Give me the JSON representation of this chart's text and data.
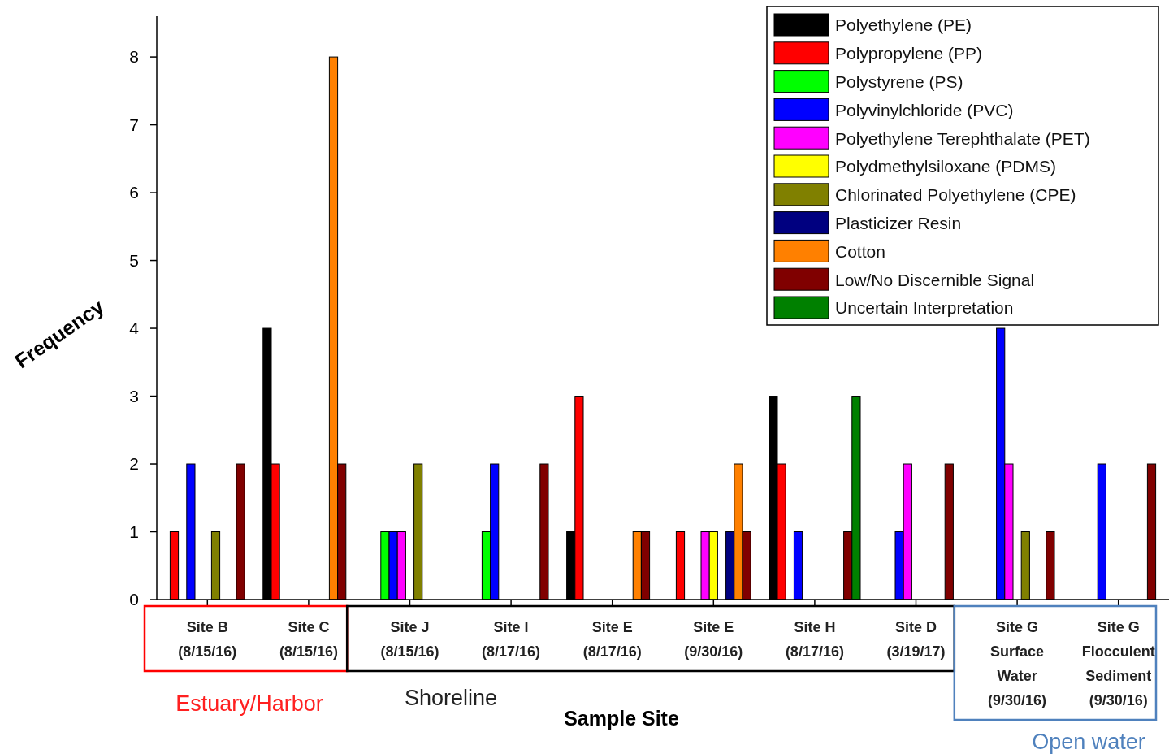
{
  "chart_data": {
    "type": "bar",
    "xlabel": "Sample Site",
    "ylabel": "Frequency",
    "categories": [
      "Site B\n(8/15/16)",
      "Site C\n(8/15/16)",
      "Site J\n(8/15/16)",
      "Site I\n(8/17/16)",
      "Site E\n(8/17/16)",
      "Site E\n(9/30/16)",
      "Site H\n(8/17/16)",
      "Site D\n(3/19/17)",
      "Site G\nSurface\nWater\n(9/30/16)",
      "Site G\nFlocculent\nSediment\n(9/30/16)"
    ],
    "series": [
      {
        "name": "Polyethylene (PE)",
        "color": "#000000",
        "values": [
          null,
          4,
          null,
          null,
          1,
          null,
          3,
          null,
          null,
          null
        ]
      },
      {
        "name": "Polypropylene (PP)",
        "color": "#ff0000",
        "values": [
          1,
          2,
          null,
          null,
          3,
          1,
          2,
          null,
          null,
          null
        ]
      },
      {
        "name": "Polystyrene (PS)",
        "color": "#00ff00",
        "values": [
          null,
          null,
          1,
          1,
          null,
          null,
          null,
          null,
          null,
          null
        ]
      },
      {
        "name": "Polyvinylchloride (PVC)",
        "color": "#0000ff",
        "values": [
          2,
          null,
          1,
          2,
          null,
          null,
          1,
          1,
          4,
          2
        ]
      },
      {
        "name": "Polyethylene Terephthalate (PET)",
        "color": "#ff00ff",
        "values": [
          null,
          null,
          1,
          null,
          null,
          1,
          null,
          2,
          2,
          null
        ]
      },
      {
        "name": "Polydmethylsiloxane (PDMS)",
        "color": "#ffff00",
        "values": [
          null,
          null,
          null,
          null,
          null,
          1,
          null,
          null,
          null,
          null
        ]
      },
      {
        "name": "Chlorinated Polyethylene (CPE)",
        "color": "#808000",
        "values": [
          1,
          null,
          2,
          null,
          null,
          null,
          null,
          null,
          1,
          null
        ]
      },
      {
        "name": "Plasticizer  Resin",
        "color": "#000080",
        "values": [
          null,
          null,
          null,
          null,
          null,
          1,
          null,
          null,
          null,
          null
        ]
      },
      {
        "name": "Cotton",
        "color": "#ff8000",
        "values": [
          null,
          8,
          null,
          null,
          1,
          2,
          null,
          null,
          null,
          null
        ]
      },
      {
        "name": "Low/No Discernible  Signal",
        "color": "#800000",
        "values": [
          2,
          2,
          null,
          2,
          1,
          1,
          1,
          2,
          1,
          2
        ]
      },
      {
        "name": "Uncertain Interpretation",
        "color": "#008000",
        "values": [
          null,
          null,
          null,
          null,
          null,
          null,
          3,
          null,
          null,
          null
        ]
      }
    ],
    "ylim": [
      0,
      8.6
    ],
    "yticks": [
      0,
      1,
      2,
      3,
      4,
      5,
      6,
      7,
      8
    ],
    "grid": false,
    "legend": "top right",
    "annotations": [
      "Estuary/Harbor",
      "Shoreline",
      "Open water"
    ]
  }
}
